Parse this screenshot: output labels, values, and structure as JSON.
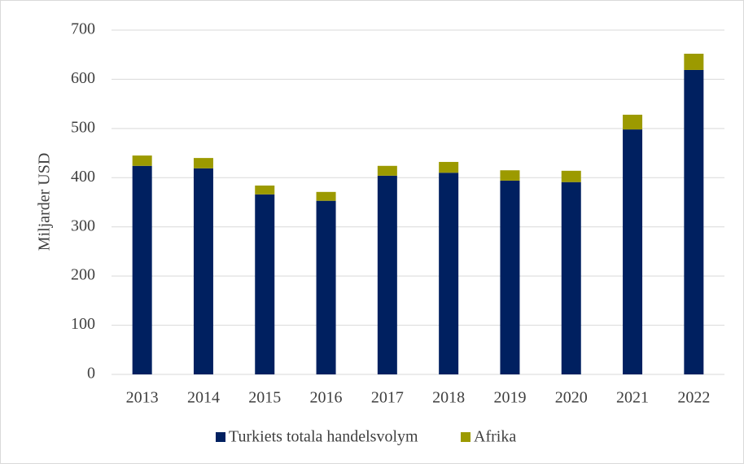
{
  "chart_data": {
    "type": "stacked_bar",
    "y_label": "Miljarder USD",
    "categories": [
      "2013",
      "2014",
      "2015",
      "2016",
      "2017",
      "2018",
      "2019",
      "2020",
      "2021",
      "2022"
    ],
    "series": [
      {
        "name": "Turkiets totala handelsvolym",
        "color": "#002060",
        "values": [
          424,
          419,
          366,
          353,
          404,
          410,
          394,
          391,
          498,
          619
        ]
      },
      {
        "name": "Afrika",
        "color": "#9c9a00",
        "values": [
          21,
          21,
          18,
          18,
          20,
          22,
          21,
          23,
          30,
          33
        ]
      }
    ],
    "ylim": [
      0,
      700
    ],
    "yticks": [
      0,
      100,
      200,
      300,
      400,
      500,
      600,
      700
    ],
    "grid": true
  }
}
